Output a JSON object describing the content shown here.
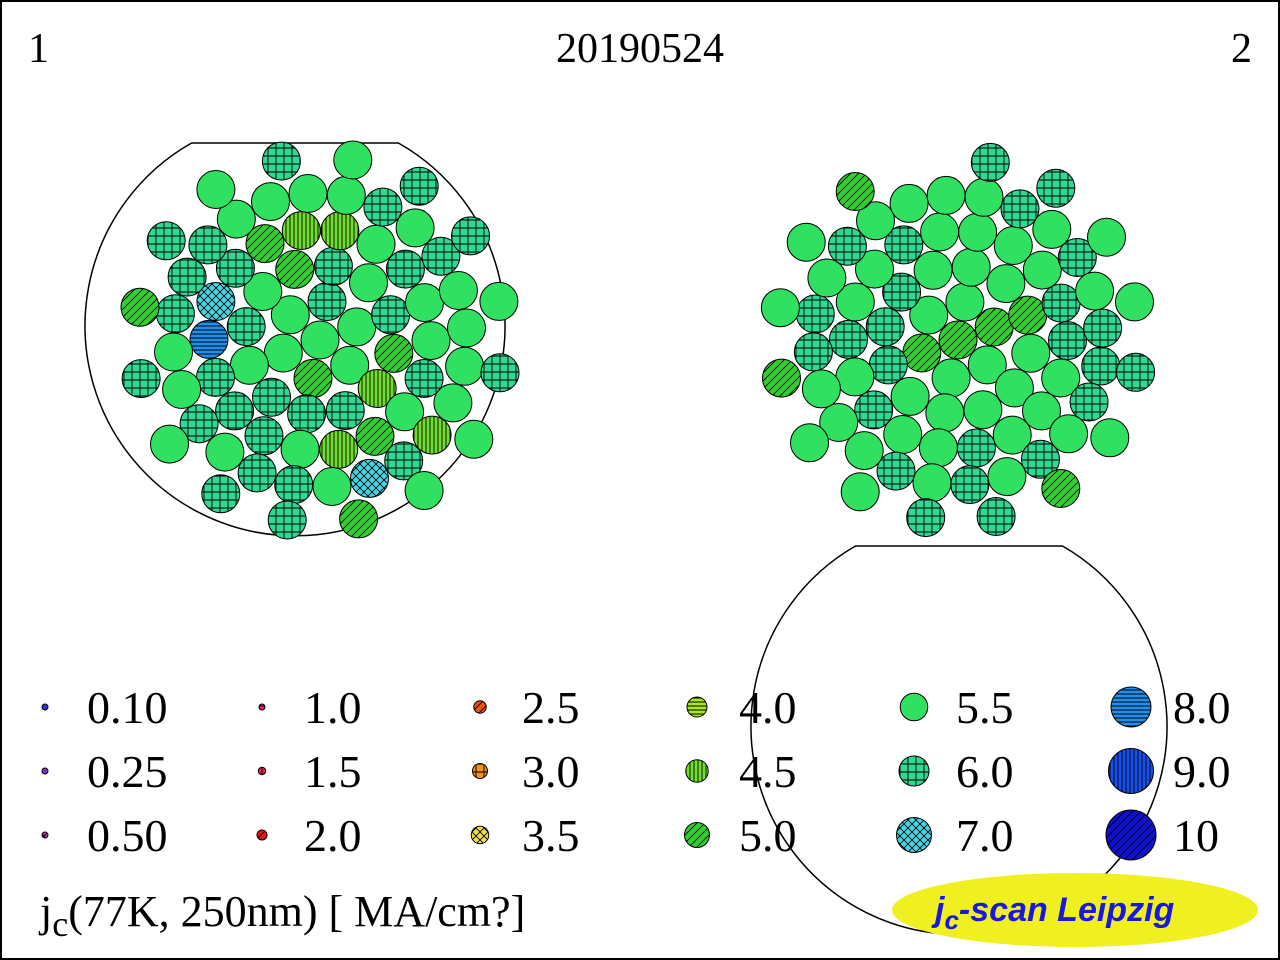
{
  "header": {
    "left_label": "1",
    "title": "20190524",
    "right_label": "2"
  },
  "legend": [
    {
      "label": "0.10",
      "value": 0.1,
      "color": "#3030d0",
      "pattern": "solid"
    },
    {
      "label": "0.25",
      "value": 0.25,
      "color": "#8030c0",
      "pattern": "solid"
    },
    {
      "label": "0.50",
      "value": 0.5,
      "color": "#d030d0",
      "pattern": "cross-diag"
    },
    {
      "label": "1.0",
      "value": 1.0,
      "color": "#e82090",
      "pattern": "hlines"
    },
    {
      "label": "1.5",
      "value": 1.5,
      "color": "#e82040",
      "pattern": "vlines"
    },
    {
      "label": "2.0",
      "value": 2.0,
      "color": "#e81818",
      "pattern": "diag"
    },
    {
      "label": "2.5",
      "value": 2.5,
      "color": "#f05018",
      "pattern": "diag"
    },
    {
      "label": "3.0",
      "value": 3.0,
      "color": "#f09020",
      "pattern": "grid"
    },
    {
      "label": "3.5",
      "value": 3.5,
      "color": "#f0e040",
      "pattern": "cross-diag"
    },
    {
      "label": "4.0",
      "value": 4.0,
      "color": "#a8e820",
      "pattern": "hlines"
    },
    {
      "label": "4.5",
      "value": 4.5,
      "color": "#70e030",
      "pattern": "vlines"
    },
    {
      "label": "5.0",
      "value": 5.0,
      "color": "#30d030",
      "pattern": "diag"
    },
    {
      "label": "5.5",
      "value": 5.5,
      "color": "#30e060",
      "pattern": "solid"
    },
    {
      "label": "6.0",
      "value": 6.0,
      "color": "#30d890",
      "pattern": "grid"
    },
    {
      "label": "7.0",
      "value": 7.0,
      "color": "#40d8e8",
      "pattern": "cross-diag"
    },
    {
      "label": "8.0",
      "value": 8.0,
      "color": "#2090f0",
      "pattern": "hlines"
    },
    {
      "label": "9.0",
      "value": 9.0,
      "color": "#1850f0",
      "pattern": "vlines"
    },
    {
      "label": "10",
      "value": 10,
      "color": "#1010d0",
      "pattern": "diag"
    }
  ],
  "axis_label": {
    "prefix": "j",
    "subscript": "c",
    "rest": "(77K, 250nm)  [ MA/cm?]"
  },
  "badge": {
    "prefix": "j",
    "subscript": "c",
    "rest": "-scan Leipzig",
    "fill": "#f0f020",
    "text_color": "#1818e0"
  },
  "wires": [
    {
      "id": "1",
      "filaments": [
        5.5,
        6.0,
        5.5,
        5.5,
        5.0,
        5.5,
        5.5,
        6.0,
        5.5,
        6.0,
        5.0,
        4.5,
        6.0,
        6.0,
        6.0,
        5.5,
        6.0,
        5.5,
        5.0,
        4.5,
        5.5,
        6.0,
        5.5,
        5.5,
        6.0,
        5.5,
        5.0,
        4.5,
        5.5,
        6.0,
        6.0,
        6.0,
        8.0,
        7.0,
        6.0,
        5.0,
        4.5,
        5.5,
        6.0,
        5.5,
        6.0,
        5.5,
        5.5,
        5.5,
        5.5,
        4.5,
        6.0,
        7.0,
        5.5,
        6.0,
        6.0,
        5.5,
        6.0,
        5.5,
        5.5,
        6.0,
        6.0,
        6.0,
        5.5,
        5.5,
        5.5,
        5.5,
        6.0,
        6.0,
        5.5,
        6.0,
        5.5,
        5.5,
        5.0,
        6.0,
        6.0,
        5.5,
        6.0,
        5.0,
        6.0,
        5.5,
        6.0
      ]
    },
    {
      "id": "2",
      "filaments": [
        5.0,
        5.5,
        5.0,
        5.5,
        5.5,
        5.0,
        5.5,
        5.5,
        5.5,
        5.0,
        5.5,
        5.5,
        5.5,
        5.5,
        5.5,
        6.0,
        6.0,
        6.0,
        5.5,
        5.5,
        5.5,
        5.5,
        6.0,
        6.0,
        5.5,
        5.5,
        5.5,
        6.0,
        5.5,
        5.5,
        6.0,
        5.5,
        6.0,
        5.5,
        5.5,
        6.0,
        5.5,
        5.5,
        6.0,
        5.5,
        6.0,
        5.5,
        6.0,
        6.0,
        6.0,
        5.5,
        6.0,
        5.5,
        6.0,
        5.5,
        6.0,
        5.5,
        5.5,
        5.5,
        6.0,
        6.0,
        5.5,
        6.0,
        5.5,
        5.5,
        5.5,
        6.0,
        6.0,
        5.5,
        5.5,
        6.0,
        5.5,
        5.0,
        6.0,
        6.0,
        5.5,
        5.5,
        5.0,
        5.5,
        5.5,
        5.0
      ]
    }
  ]
}
